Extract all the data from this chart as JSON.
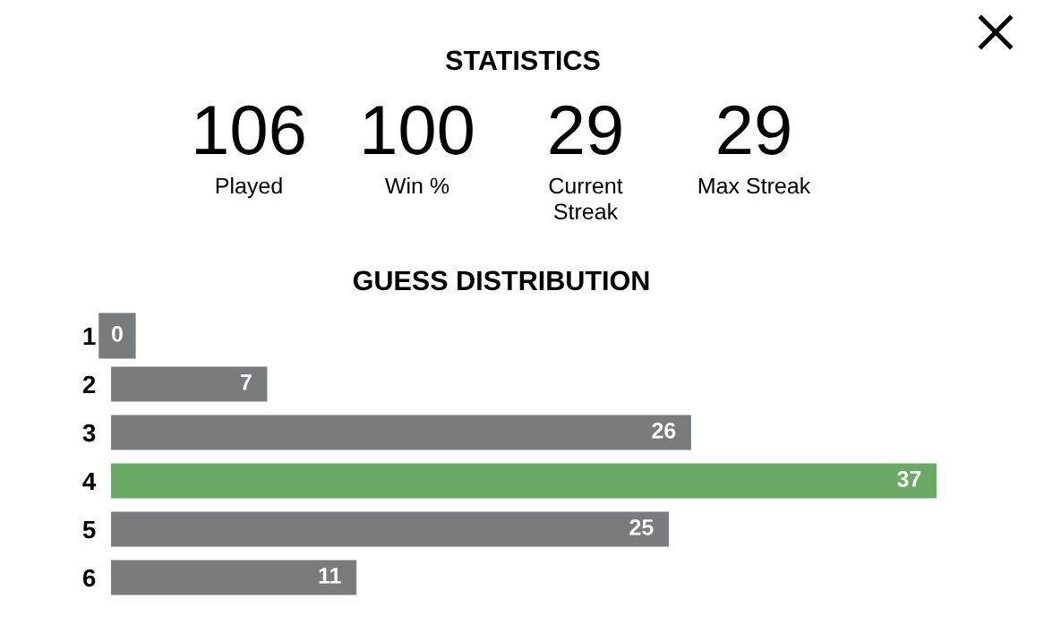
{
  "chart_data": [
    {
      "type": "other",
      "title": "STATISTICS",
      "categories": [
        "Played",
        "Win %",
        "Current\nStreak",
        "Max Streak"
      ],
      "values": [
        106,
        100,
        29,
        29
      ],
      "data_labels": true
    },
    {
      "type": "bar",
      "orientation": "horizontal",
      "title": "GUESS DISTRIBUTION",
      "categories": [
        "1",
        "2",
        "3",
        "4",
        "5",
        "6"
      ],
      "values": [
        0,
        7,
        26,
        37,
        25,
        11
      ],
      "colors": [
        "#787c7e",
        "#787c7e",
        "#787c7e",
        "#6aaa64",
        "#787c7e",
        "#787c7e"
      ],
      "data_labels": true,
      "tick_labels": "y",
      "grid": false,
      "legend": false
    }
  ]
}
